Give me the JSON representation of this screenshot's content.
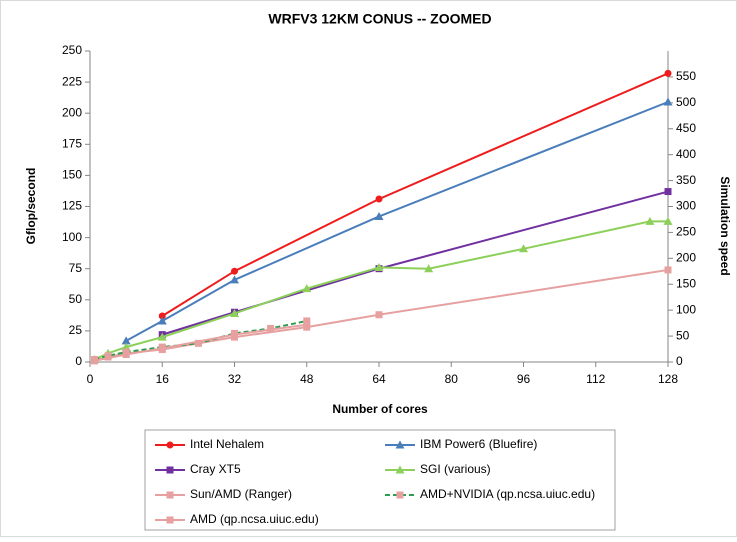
{
  "chart_data": {
    "type": "line",
    "title": "WRFV3 12KM CONUS -- ZOOMED",
    "x_label": "Number of cores",
    "y_label": "Gflop/second",
    "y2_label": "Simulation speed",
    "xlim": [
      0,
      128
    ],
    "xticks": [
      0,
      16,
      32,
      48,
      64,
      80,
      96,
      112,
      128
    ],
    "ylim": [
      0,
      250
    ],
    "yticks": [
      0,
      25,
      50,
      75,
      100,
      125,
      150,
      175,
      200,
      225,
      250
    ],
    "y2lim": [
      0,
      600
    ],
    "y2ticks": [
      0,
      50,
      100,
      150,
      200,
      250,
      300,
      350,
      400,
      450,
      500,
      550
    ],
    "grid": false,
    "legend": "bottom",
    "series": [
      {
        "name": "Intel Nehalem",
        "color": "#ee1c1c",
        "marker": "circle",
        "dash": false,
        "x": [
          16,
          32,
          64,
          128
        ],
        "values": [
          37,
          73,
          131,
          232
        ]
      },
      {
        "name": "IBM Power6 (Bluefire)",
        "color": "#4a7ebb",
        "marker": "triangle",
        "dash": false,
        "x": [
          8,
          16,
          32,
          64,
          128
        ],
        "values": [
          17,
          33,
          66,
          117,
          209
        ]
      },
      {
        "name": "Cray XT5",
        "color": "#7030a0",
        "marker": "square",
        "dash": false,
        "x": [
          16,
          32,
          64,
          128
        ],
        "values": [
          22,
          40,
          75,
          137
        ]
      },
      {
        "name": "SGI (various)",
        "color": "#8cd05a",
        "marker": "triangle",
        "dash": false,
        "x": [
          1,
          4,
          8,
          16,
          32,
          48,
          64,
          75,
          96,
          124,
          128
        ],
        "values": [
          2,
          7,
          12,
          20,
          39,
          59,
          76,
          75,
          91,
          113,
          113
        ]
      },
      {
        "name": "Sun/AMD (Ranger)",
        "color": "#e6a0a0",
        "marker": "square",
        "dash": false,
        "x": [
          1,
          4,
          8,
          16,
          32,
          48,
          64,
          128
        ],
        "values": [
          1,
          4,
          7,
          10,
          20,
          28,
          38,
          74
        ]
      },
      {
        "name": "AMD+NVIDIA (qp.ncsa.uiuc.edu)",
        "color": "#2e9e4e",
        "marker": "square",
        "dash": true,
        "x": [
          1,
          4,
          8,
          16,
          24,
          32,
          40,
          48
        ],
        "values": [
          2,
          5,
          8,
          12,
          15,
          23,
          27,
          33
        ]
      },
      {
        "name": "AMD (qp.ncsa.uiuc.edu)",
        "color": "#e6a0a0",
        "marker": "square",
        "dash": false,
        "x": [
          1,
          8,
          16,
          32,
          48
        ],
        "values": [
          1,
          6,
          11,
          22,
          30
        ]
      }
    ]
  }
}
